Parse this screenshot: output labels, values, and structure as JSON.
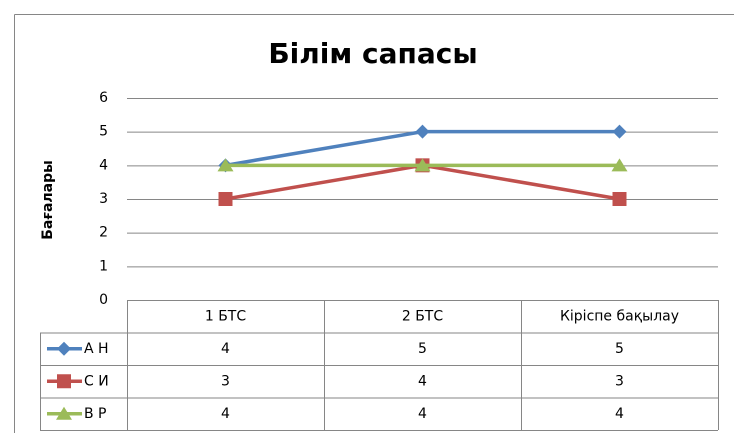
{
  "chart_data": {
    "type": "line",
    "title": "Білім сапасы",
    "y_label": "Бағалары",
    "categories": [
      "1 БТС",
      "2 БТС",
      "Кіріспе бақылау"
    ],
    "series": [
      {
        "name": "А Н",
        "color": "#4f81bd",
        "values": [
          4,
          5,
          5
        ]
      },
      {
        "name": "С И",
        "color": "#c0504d",
        "values": [
          3,
          4,
          3
        ]
      },
      {
        "name": "В Р",
        "color": "#9bbb59",
        "values": [
          4,
          4,
          4
        ]
      }
    ],
    "ylim": [
      0,
      6
    ],
    "yticks": [
      0,
      1,
      2,
      3,
      4,
      5,
      6
    ],
    "grid": true,
    "data_table": true
  }
}
